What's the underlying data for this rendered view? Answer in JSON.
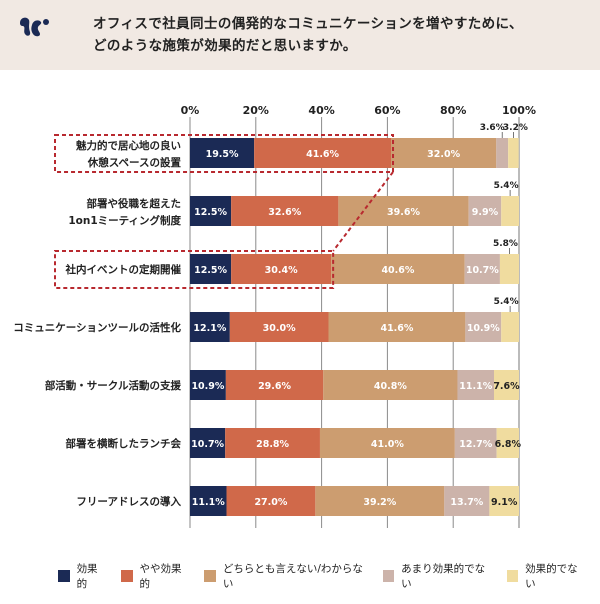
{
  "header": {
    "logo_icon": "brand-logo-icon",
    "title_lines": [
      "オフィスで社員同士の偶発的なコミュニケーションを増やすために、",
      "どのような施策が効果的だと思いますか。"
    ],
    "background": "#f1e9e3"
  },
  "chart_data": {
    "type": "bar",
    "orientation": "horizontal",
    "stacked": true,
    "title": "オフィスで社員同士の偶発的なコミュニケーションを増やすために、どのような施策が効果的だと思いますか。",
    "xlabel": "",
    "ylabel": "",
    "xlim": [
      0,
      100
    ],
    "x_ticks": [
      "0%",
      "20%",
      "40%",
      "60%",
      "80%",
      "100%"
    ],
    "x_tick_values": [
      0,
      20,
      40,
      60,
      80,
      100
    ],
    "grid": true,
    "legend_position": "bottom",
    "categories": [
      "魅力的で居心地の良い\n休憩スペースの設置",
      "部署や役職を超えた\n1on1ミーティング制度",
      "社内イベントの定期開催",
      "コミュニケーションツールの活性化",
      "部活動・サークル活動の支援",
      "部署を横断したランチ会",
      "フリーアドレスの導入"
    ],
    "highlighted_categories": [
      "魅力的で居心地の良い\n休憩スペースの設置",
      "社内イベントの定期開催"
    ],
    "highlight_color": "#b8292f",
    "series": [
      {
        "name": "効果的",
        "color": "#1b2a55",
        "values": [
          19.5,
          12.5,
          12.5,
          12.1,
          10.9,
          10.7,
          11.1
        ]
      },
      {
        "name": "やや効果的",
        "color": "#d0694a",
        "values": [
          41.6,
          32.6,
          30.4,
          30.0,
          29.6,
          28.8,
          27.0
        ]
      },
      {
        "name": "どちらとも言えない/わからない",
        "color": "#cc9d70",
        "values": [
          32.0,
          39.6,
          40.6,
          41.6,
          40.8,
          41.0,
          39.2
        ]
      },
      {
        "name": "あまり効果的でない",
        "color": "#ccb3aa",
        "values": [
          3.6,
          9.9,
          10.7,
          10.9,
          11.1,
          12.7,
          13.7
        ]
      },
      {
        "name": "効果的でない",
        "color": "#f0dc9f",
        "values": [
          3.2,
          5.4,
          5.8,
          5.4,
          7.6,
          6.8,
          9.1
        ]
      }
    ],
    "data_labels": [
      [
        "19.5%",
        "41.6%",
        "32.0%",
        "3.6%",
        "3.2%"
      ],
      [
        "12.5%",
        "32.6%",
        "39.6%",
        "9.9%",
        "5.4%"
      ],
      [
        "12.5%",
        "30.4%",
        "40.6%",
        "10.7%",
        "5.8%"
      ],
      [
        "12.1%",
        "30.0%",
        "41.6%",
        "10.9%",
        "5.4%"
      ],
      [
        "10.9%",
        "29.6%",
        "40.8%",
        "11.1%",
        "7.6%"
      ],
      [
        "10.7%",
        "28.8%",
        "41.0%",
        "12.7%",
        "6.8%"
      ],
      [
        "11.1%",
        "27.0%",
        "39.2%",
        "13.7%",
        "9.1%"
      ]
    ]
  },
  "legend": [
    {
      "label": "効果的",
      "color": "#1b2a55"
    },
    {
      "label": "やや効果的",
      "color": "#d0694a"
    },
    {
      "label": "どちらとも言えない/わからない",
      "color": "#cc9d70"
    },
    {
      "label": "あまり効果的でない",
      "color": "#ccb3aa"
    },
    {
      "label": "効果的でない",
      "color": "#f0dc9f"
    }
  ]
}
